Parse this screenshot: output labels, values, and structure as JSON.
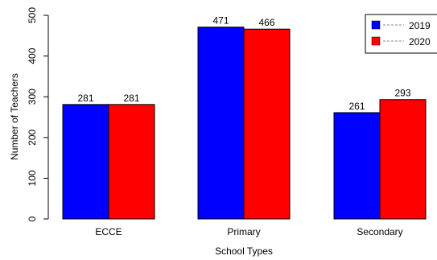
{
  "chart_data": {
    "type": "bar",
    "title": "",
    "xlabel": "School Types",
    "ylabel": "Number of Teachers",
    "categories": [
      "ECCE",
      "Primary",
      "Secondary"
    ],
    "series": [
      {
        "name": "2019",
        "values": [
          281,
          471,
          261
        ],
        "color": "#0000ff"
      },
      {
        "name": "2020",
        "values": [
          281,
          466,
          293
        ],
        "color": "#ff0000"
      }
    ],
    "ylim": [
      0,
      500
    ],
    "yticks": [
      0,
      100,
      200,
      300,
      400,
      500
    ],
    "grid": false,
    "legend_position": "top-right"
  }
}
